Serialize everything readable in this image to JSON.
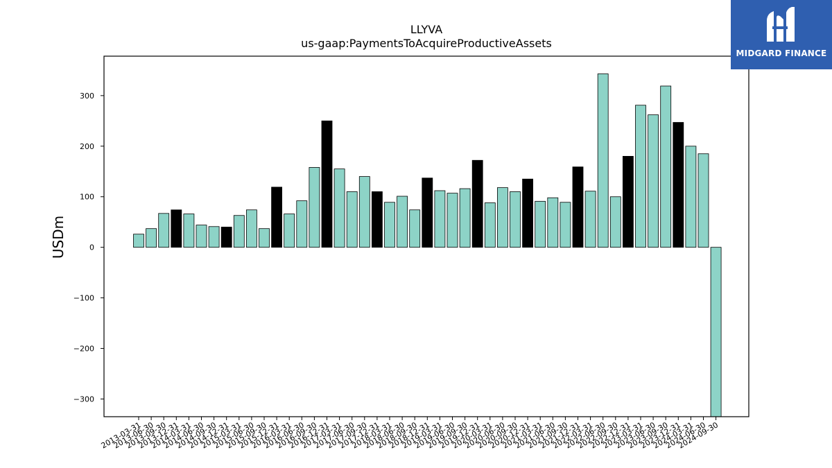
{
  "logo": {
    "text": "MIDGARD FINANCE"
  },
  "chart_data": {
    "type": "bar",
    "title": "LLYVA",
    "subtitle": "us-gaap:PaymentsToAcquireProductiveAssets",
    "xlabel": "",
    "ylabel": "USDm",
    "ylim": [
      -335,
      378
    ],
    "yticks": [
      -300,
      -200,
      -100,
      0,
      100,
      200,
      300
    ],
    "grid": false,
    "colors": {
      "quarter": "#8dd3c7",
      "year_end": "#000000",
      "edge": "#000000"
    },
    "categories": [
      "2013-03-31",
      "2013-06-30",
      "2013-09-30",
      "2013-12-31",
      "2014-03-31",
      "2014-06-30",
      "2014-09-30",
      "2014-12-31",
      "2015-03-31",
      "2015-06-30",
      "2015-09-30",
      "2015-12-31",
      "2016-03-31",
      "2016-06-30",
      "2016-09-30",
      "2016-12-31",
      "2017-03-31",
      "2017-06-30",
      "2017-09-30",
      "2017-12-31",
      "2018-03-31",
      "2018-06-30",
      "2018-09-30",
      "2018-12-31",
      "2019-03-31",
      "2019-06-30",
      "2019-09-30",
      "2019-12-31",
      "2020-03-31",
      "2020-06-30",
      "2020-09-30",
      "2020-12-31",
      "2021-03-31",
      "2021-06-30",
      "2021-09-30",
      "2021-12-31",
      "2022-03-31",
      "2022-06-30",
      "2022-09-30",
      "2022-12-31",
      "2023-03-31",
      "2023-06-30",
      "2023-09-30",
      "2023-12-31",
      "2024-03-31",
      "2024-06-30",
      "2024-09-30"
    ],
    "values": [
      26,
      37,
      67,
      74,
      66,
      44,
      41,
      40,
      63,
      74,
      37,
      119,
      66,
      92,
      158,
      250,
      155,
      110,
      140,
      110,
      89,
      101,
      74,
      137,
      112,
      107,
      116,
      172,
      88,
      118,
      110,
      135,
      91,
      98,
      89,
      159,
      111,
      343,
      100,
      180,
      281,
      262,
      319,
      247,
      200,
      185,
      -335
    ]
  }
}
